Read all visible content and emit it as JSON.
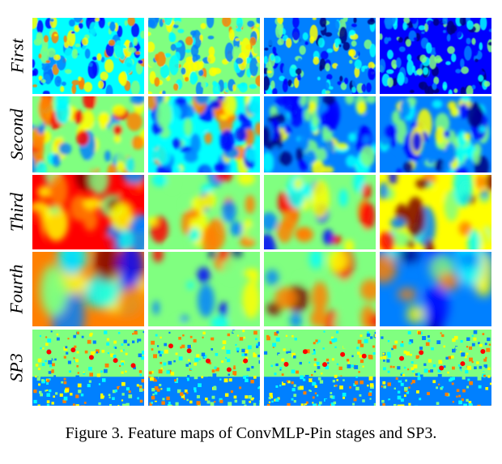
{
  "figure": {
    "caption": "Figure 3. Feature maps of ConvMLP-Pin stages and SP3.",
    "rows": [
      {
        "label": "First",
        "maps": [
          "jet-textured-mid",
          "jet-textured-light",
          "jet-textured-blue",
          "jet-textured-dark-blue"
        ]
      },
      {
        "label": "Second",
        "maps": [
          "jet-blotchy-warm",
          "jet-blotchy-mid",
          "jet-blotchy-blue",
          "jet-blotchy-blue"
        ]
      },
      {
        "label": "Third",
        "maps": [
          "jet-smooth-red",
          "jet-smooth-green",
          "jet-smooth-green-red",
          "jet-smooth-mixed"
        ]
      },
      {
        "label": "Fourth",
        "maps": [
          "jet-blurry-orange",
          "jet-blurry-green",
          "jet-blurry-green-red",
          "jet-blurry-blue"
        ]
      },
      {
        "label": "SP3",
        "maps": [
          "jet-pixelated-green",
          "jet-pixelated-green",
          "jet-pixelated-green",
          "jet-pixelated-green"
        ]
      }
    ],
    "colormap": [
      "#00007f",
      "#0000ff",
      "#0080ff",
      "#00ffff",
      "#80ff80",
      "#ffff00",
      "#ff8000",
      "#ff0000",
      "#7f0000"
    ]
  }
}
